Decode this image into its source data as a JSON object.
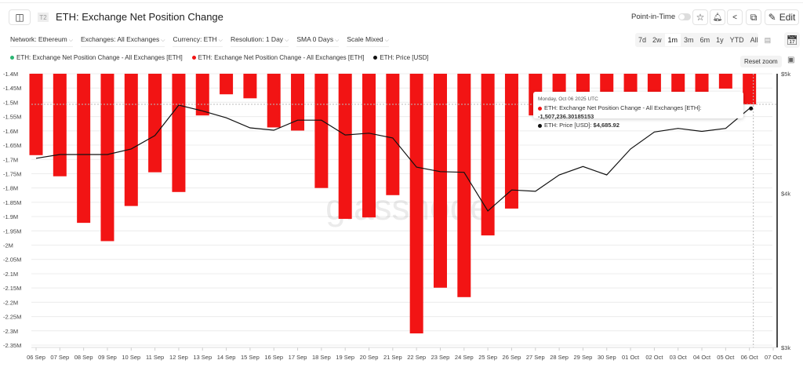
{
  "header": {
    "tag": "T2",
    "title": "ETH: Exchange Net Position Change",
    "point_in_time": "Point-in-Time",
    "edit": "Edit"
  },
  "filters": [
    "Network: Ethereum",
    "Exchanges: All Exchanges",
    "Currency: ETH",
    "Resolution: 1 Day",
    "SMA 0 Days",
    "Scale Mixed"
  ],
  "ranges": [
    "7d",
    "2w",
    "1m",
    "3m",
    "6m",
    "1y",
    "YTD",
    "All"
  ],
  "active_range": "1m",
  "reset_zoom": "Reset zoom",
  "legend": [
    {
      "label": "ETH: Exchange Net Position Change - All Exchanges [ETH]",
      "color": "#2bb673"
    },
    {
      "label": "ETH: Exchange Net Position Change - All Exchanges [ETH]",
      "color": "#f21414"
    },
    {
      "label": "ETH: Price [USD]",
      "color": "#111111"
    }
  ],
  "tooltip": {
    "date": "Monday, Oct 06 2025 UTC",
    "net_label": "ETH: Exchange Net Position Change - All Exchanges [ETH]:",
    "net_value": "-1,507,236.30185153",
    "price_label": "ETH: Price [USD]:",
    "price_value": "$4,685.92"
  },
  "watermark": "glassnode",
  "chart_data": {
    "type": "bar+line",
    "categories": [
      "06 Sep",
      "07 Sep",
      "08 Sep",
      "09 Sep",
      "10 Sep",
      "11 Sep",
      "12 Sep",
      "13 Sep",
      "14 Sep",
      "15 Sep",
      "16 Sep",
      "17 Sep",
      "18 Sep",
      "19 Sep",
      "20 Sep",
      "21 Sep",
      "22 Sep",
      "23 Sep",
      "24 Sep",
      "25 Sep",
      "26 Sep",
      "27 Sep",
      "28 Sep",
      "29 Sep",
      "30 Sep",
      "01 Oct",
      "02 Oct",
      "03 Oct",
      "04 Oct",
      "05 Oct",
      "06 Oct",
      "07 Oct"
    ],
    "series": [
      {
        "name": "ETH: Exchange Net Position Change - All Exchanges [ETH]",
        "axis": "left",
        "color": "#f21414",
        "values": [
          -1685000,
          -1759000,
          -1922000,
          -1986000,
          -1863000,
          -1745000,
          -1814000,
          -1546000,
          -1472000,
          -1486000,
          -1588000,
          -1599000,
          -1800000,
          -1908000,
          -1903000,
          -1825000,
          -2309000,
          -2149000,
          -2182000,
          -1966000,
          -1872000,
          -1546000,
          -1470000,
          -1466000,
          -1464000,
          -1464000,
          -1464000,
          -1464000,
          -1464000,
          -1452000,
          -1507236,
          null
        ]
      },
      {
        "name": "ETH: Price [USD]",
        "axis": "right",
        "color": "#111111",
        "values": [
          4270,
          4300,
          4300,
          4300,
          4345,
          4455,
          4715,
          4665,
          4605,
          4520,
          4500,
          4585,
          4585,
          4460,
          4475,
          4435,
          4200,
          4165,
          4160,
          3870,
          4025,
          4015,
          4140,
          4205,
          4140,
          4345,
          4485,
          4515,
          4490,
          4515,
          4686,
          null
        ]
      }
    ],
    "left_axis": {
      "ylim": [
        -2350000,
        -1400000
      ],
      "ticks": [
        "-1.4M",
        "-1.45M",
        "-1.5M",
        "-1.55M",
        "-1.6M",
        "-1.65M",
        "-1.7M",
        "-1.75M",
        "-1.8M",
        "-1.85M",
        "-1.9M",
        "-1.95M",
        "-2M",
        "-2.05M",
        "-2.1M",
        "-2.15M",
        "-2.2M",
        "-2.25M",
        "-2.3M",
        "-2.35M"
      ]
    },
    "right_axis": {
      "scale": "log",
      "ylim": [
        3000,
        5000
      ],
      "ticks": [
        {
          "v": 5000,
          "label": "$5k"
        },
        {
          "v": 4000,
          "label": "$4k"
        },
        {
          "v": 3000,
          "label": "$3k"
        }
      ]
    },
    "grid": true
  }
}
